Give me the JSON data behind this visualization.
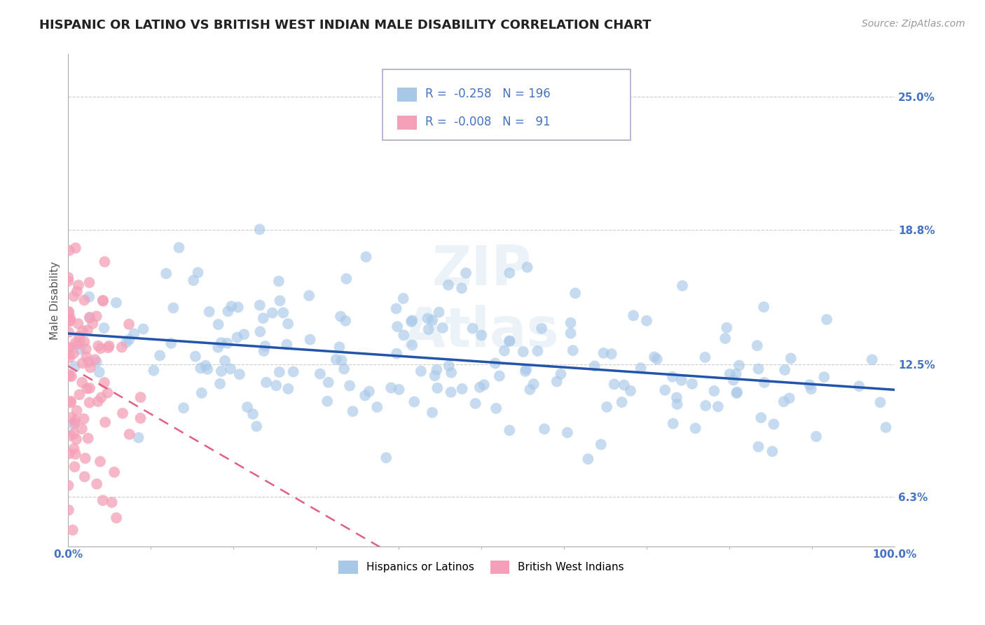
{
  "title": "HISPANIC OR LATINO VS BRITISH WEST INDIAN MALE DISABILITY CORRELATION CHART",
  "source": "Source: ZipAtlas.com",
  "ylabel": "Male Disability",
  "xlim": [
    0.0,
    1.0
  ],
  "ylim": [
    0.04,
    0.27
  ],
  "yticks": [
    0.063,
    0.125,
    0.188,
    0.25
  ],
  "ytick_labels": [
    "6.3%",
    "12.5%",
    "18.8%",
    "25.0%"
  ],
  "blue_R": -0.258,
  "blue_N": 196,
  "pink_R": -0.008,
  "pink_N": 91,
  "blue_color": "#a8c8e8",
  "pink_color": "#f4a0b8",
  "blue_line_color": "#2255aa",
  "pink_line_color": "#e06080",
  "title_color": "#222222",
  "axis_label_color": "#555555",
  "tick_color": "#4472c4",
  "grid_color": "#cccccc",
  "legend_blue_text_color": "#4472c4",
  "legend_pink_text_color": "#e06080",
  "title_fontsize": 13,
  "source_fontsize": 10,
  "tick_fontsize": 11,
  "legend_fontsize": 12
}
